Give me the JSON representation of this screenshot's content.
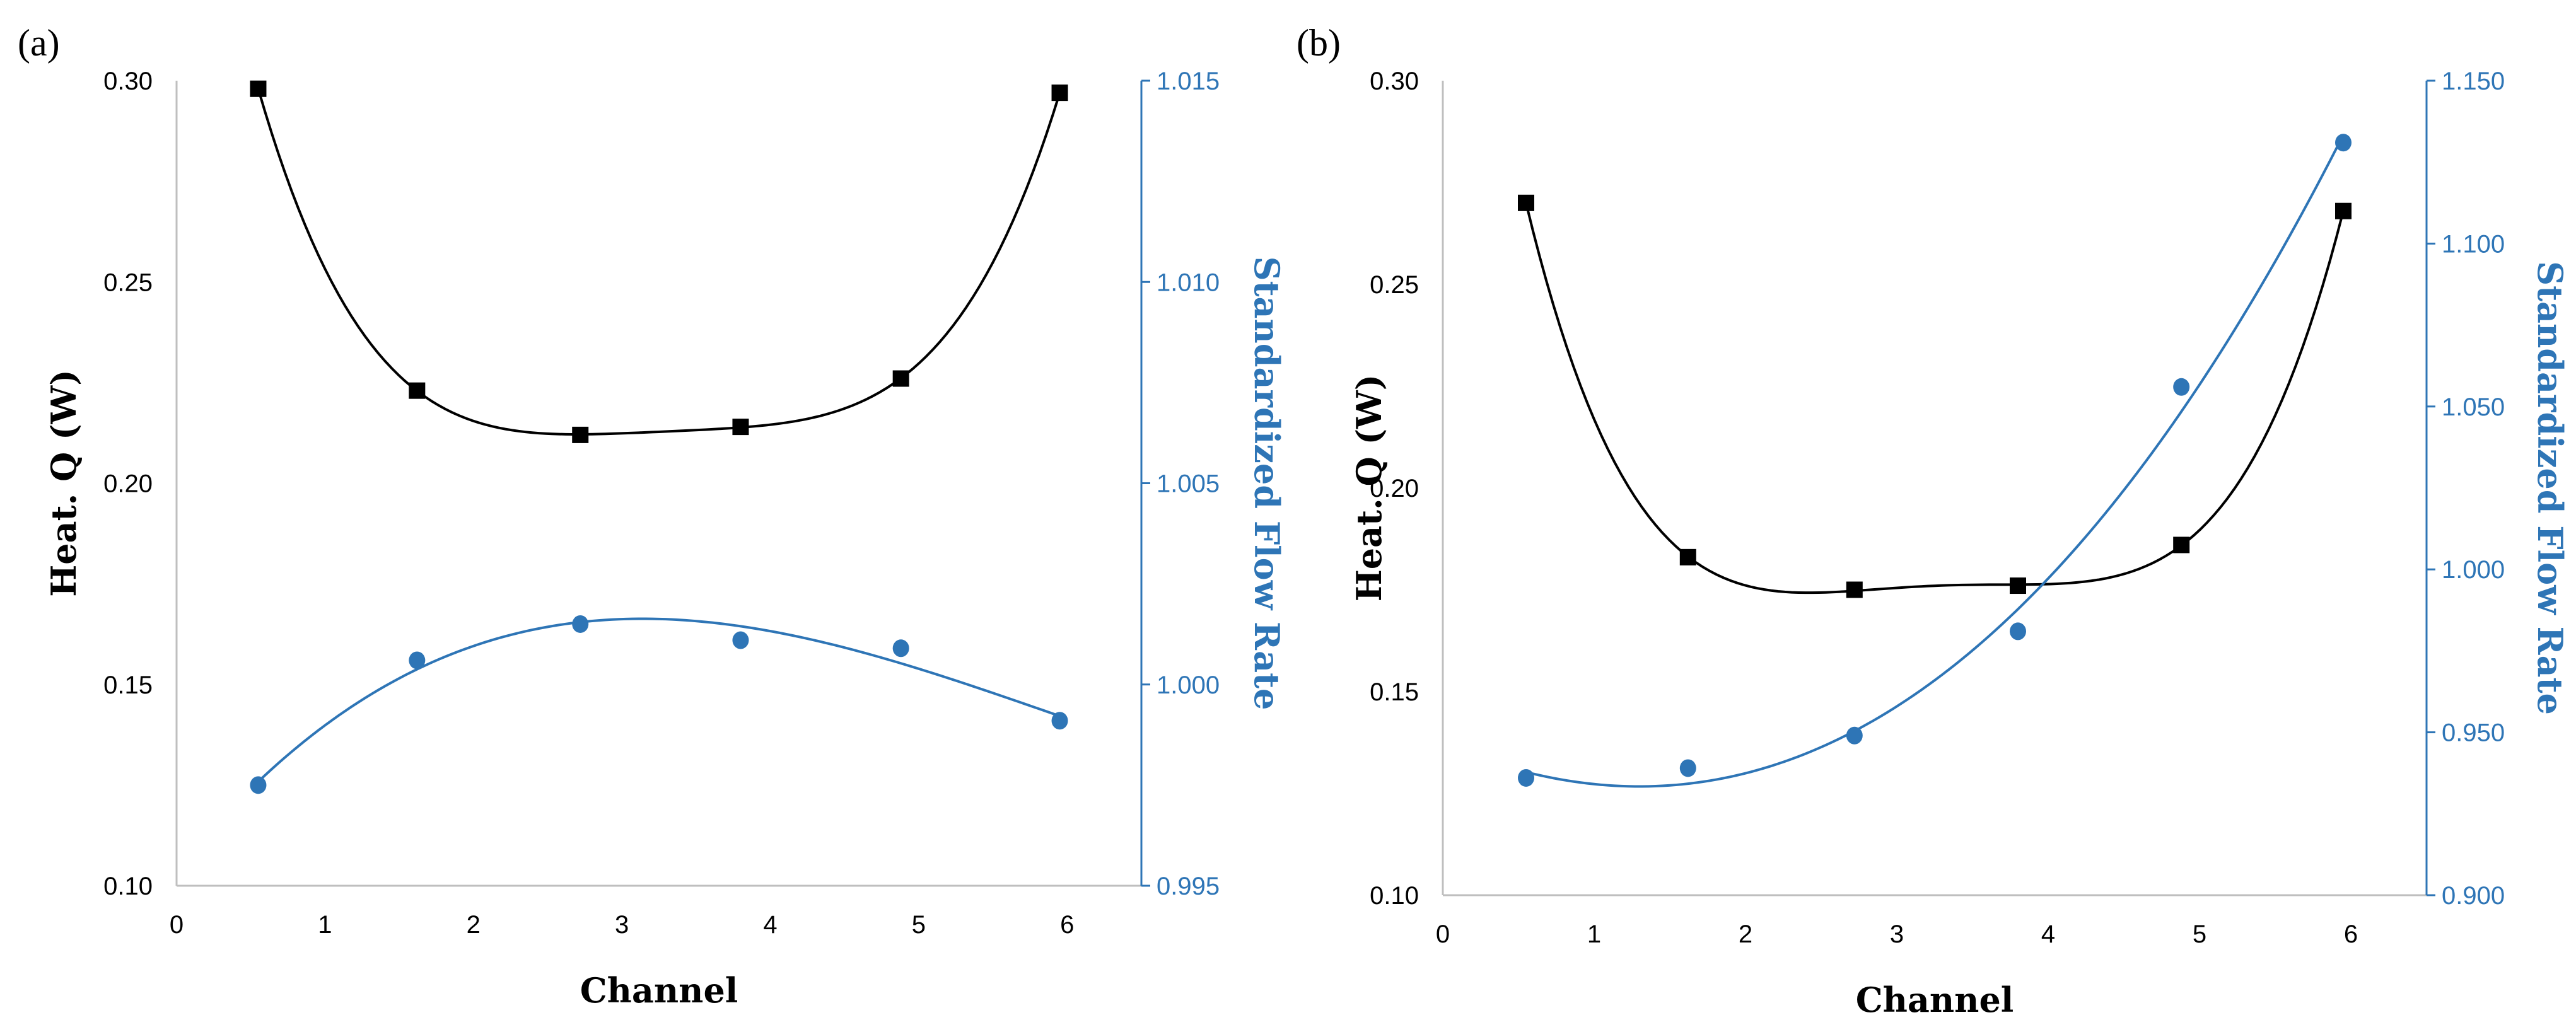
{
  "chart_data": [
    {
      "type": "scatter",
      "panel_label": "(a)",
      "xlabel": "Channel",
      "ylabel_left": "Heat. Q (W)",
      "ylabel_right": "Standardized Flow Rate",
      "xlim": [
        0,
        6.5
      ],
      "xticks": [
        "0",
        "1",
        "2",
        "3",
        "4",
        "5",
        "6"
      ],
      "ylim_left": [
        0.1,
        0.3
      ],
      "yticks_left": [
        "0.10",
        "0.15",
        "0.20",
        "0.25",
        "0.30"
      ],
      "ylim_right": [
        0.995,
        1.015
      ],
      "yticks_right": [
        "0.995",
        "1.000",
        "1.005",
        "1.010",
        "1.015"
      ],
      "grid": false,
      "series": [
        {
          "name": "Heat. Q (W)",
          "axis": "left",
          "marker": "square",
          "color": "#000000",
          "x": [
            0.55,
            1.62,
            2.72,
            3.8,
            4.88,
            5.95
          ],
          "y": [
            0.298,
            0.223,
            0.212,
            0.214,
            0.226,
            0.297
          ],
          "trend": "polynomial"
        },
        {
          "name": "Standardized Flow Rate",
          "axis": "right",
          "marker": "circle",
          "color": "#2E75B6",
          "x": [
            0.55,
            1.62,
            2.72,
            3.8,
            4.88,
            5.95
          ],
          "y": [
            0.9975,
            1.0006,
            1.0015,
            1.0011,
            1.0009,
            0.9991
          ],
          "trend": "polynomial"
        }
      ]
    },
    {
      "type": "scatter",
      "panel_label": "(b)",
      "xlabel": "Channel",
      "ylabel_left": "Heat. Q (W)",
      "ylabel_right": "Standardized Flow Rate",
      "xlim": [
        0,
        6.5
      ],
      "xticks": [
        "0",
        "1",
        "2",
        "3",
        "4",
        "5",
        "6"
      ],
      "ylim_left": [
        0.1,
        0.3
      ],
      "yticks_left": [
        "0.10",
        "0.15",
        "0.20",
        "0.25",
        "0.30"
      ],
      "ylim_right": [
        0.9,
        1.15
      ],
      "yticks_right": [
        "0.900",
        "0.950",
        "1.000",
        "1.050",
        "1.100",
        "1.150"
      ],
      "grid": false,
      "series": [
        {
          "name": "Heat. Q (W)",
          "axis": "left",
          "marker": "square",
          "color": "#000000",
          "x": [
            0.55,
            1.62,
            2.72,
            3.8,
            4.88,
            5.95
          ],
          "y": [
            0.27,
            0.183,
            0.175,
            0.176,
            0.186,
            0.268
          ],
          "trend": "polynomial"
        },
        {
          "name": "Standardized Flow Rate",
          "axis": "right",
          "marker": "circle",
          "color": "#2E75B6",
          "x": [
            0.55,
            1.62,
            2.72,
            3.8,
            4.88,
            5.95
          ],
          "y": [
            0.936,
            0.939,
            0.949,
            0.981,
            1.056,
            1.131
          ],
          "trend": "polynomial"
        }
      ]
    }
  ]
}
